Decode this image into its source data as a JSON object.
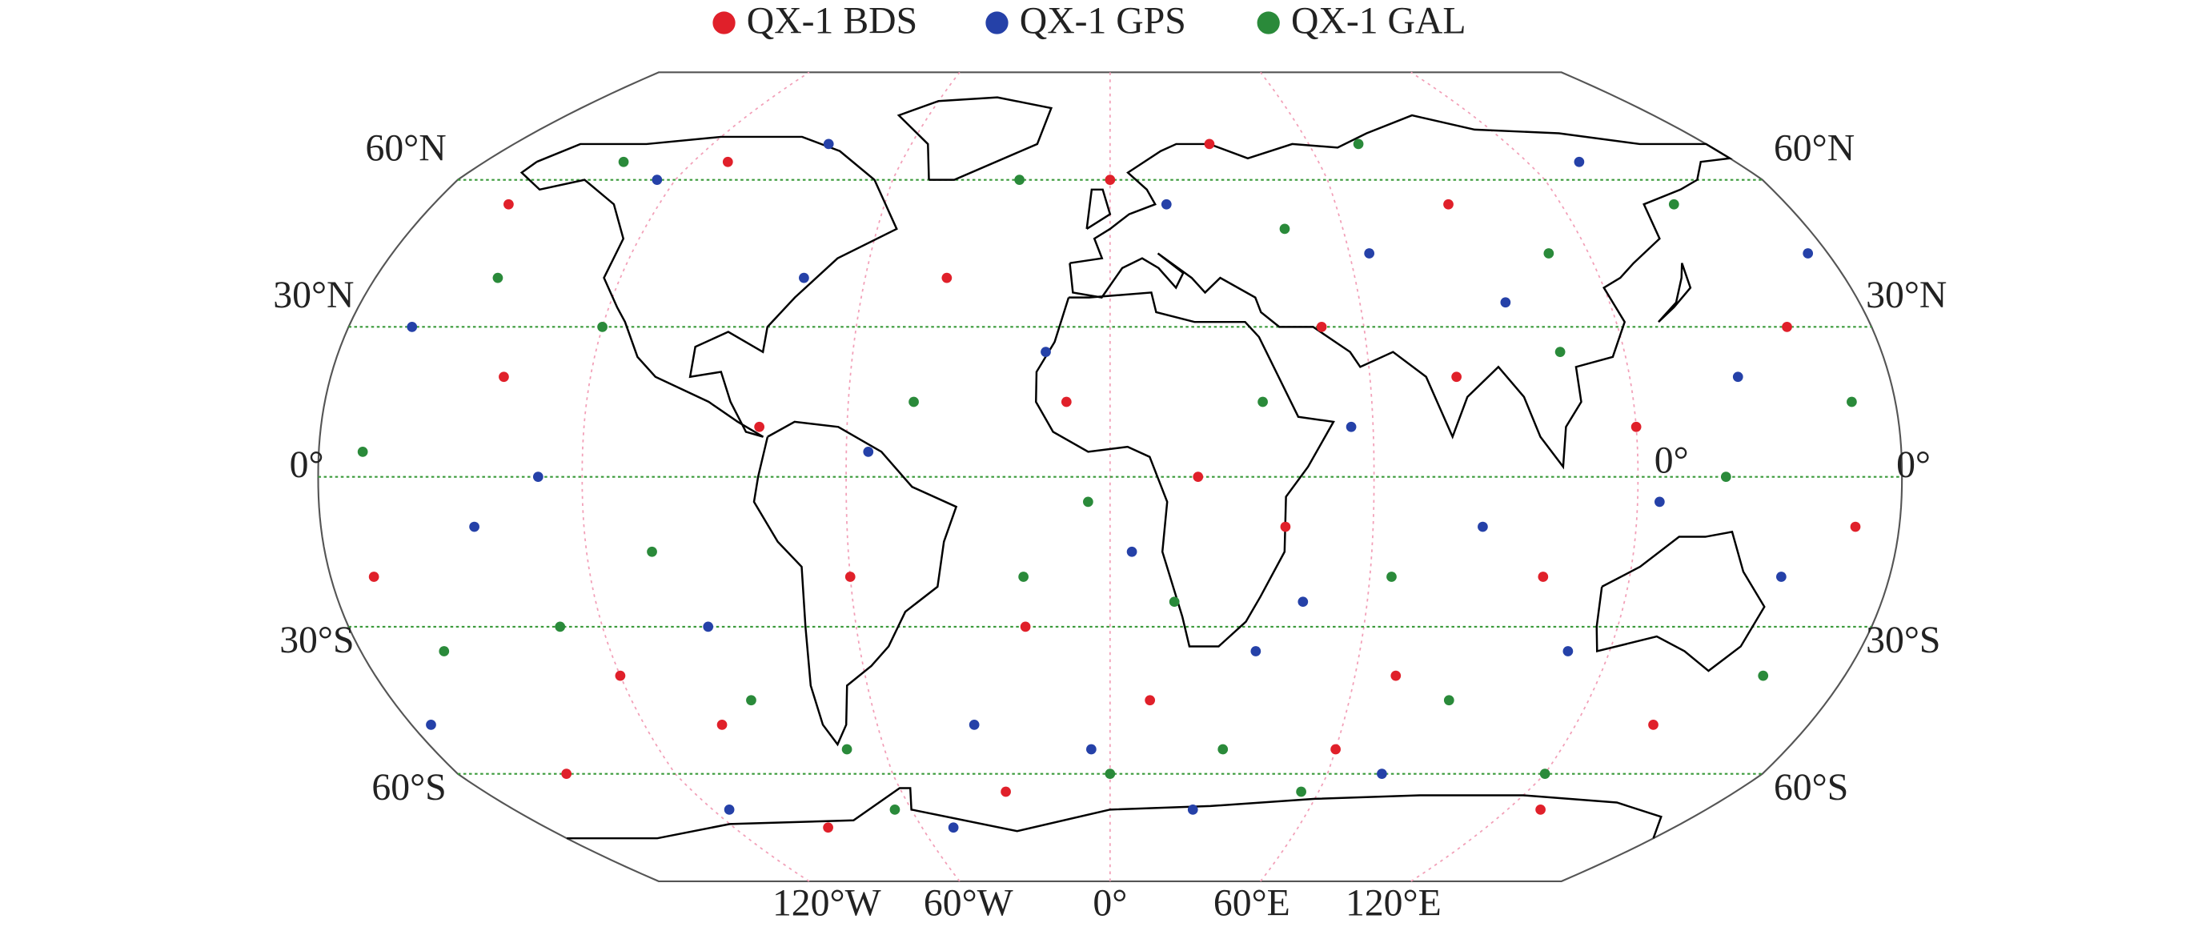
{
  "chart_data": {
    "type": "scatter",
    "projection": "robinson",
    "xlim": [
      -180,
      180
    ],
    "ylim": [
      -90,
      90
    ],
    "xticks": [
      {
        "value": -120,
        "label": "120°W"
      },
      {
        "value": -60,
        "label": "60°W"
      },
      {
        "value": 0,
        "label": "0°"
      },
      {
        "value": 60,
        "label": "60°E"
      },
      {
        "value": 120,
        "label": "120°E"
      }
    ],
    "yticks": [
      {
        "value": 60,
        "label": "60°N"
      },
      {
        "value": 30,
        "label": "30°N"
      },
      {
        "value": 0,
        "label": "0°"
      },
      {
        "value": -30,
        "label": "30°S"
      },
      {
        "value": -60,
        "label": "60°S"
      }
    ],
    "annotation": "0°",
    "grid": true,
    "legend": "top",
    "series": [
      {
        "name": "QX-1 BDS",
        "color": "#e0202a",
        "x": [
          -160,
          -140,
          -120,
          -100,
          -80,
          -60,
          -40,
          -20,
          0,
          10,
          20,
          40,
          50,
          70,
          90,
          100,
          120,
          140,
          160,
          170,
          -170,
          -150,
          -110,
          -30,
          30,
          60,
          130,
          -90,
          80,
          -10
        ],
        "y": [
          55,
          20,
          -40,
          -50,
          10,
          -20,
          40,
          -30,
          60,
          -45,
          0,
          -10,
          30,
          -40,
          55,
          -20,
          10,
          -50,
          30,
          -10,
          -20,
          -60,
          65,
          -65,
          70,
          -55,
          -70,
          -75,
          20,
          15
        ]
      },
      {
        "name": "QX-1 GPS",
        "color": "#2541a8",
        "x": [
          -165,
          -145,
          -125,
          -95,
          -75,
          -55,
          -35,
          -15,
          5,
          15,
          35,
          55,
          75,
          95,
          110,
          135,
          155,
          175,
          -175,
          -115,
          -85,
          -50,
          25,
          65,
          125,
          145,
          -5,
          45,
          -130,
          85
        ],
        "y": [
          30,
          -10,
          60,
          -30,
          40,
          5,
          -50,
          25,
          -15,
          55,
          -35,
          10,
          -60,
          35,
          -35,
          65,
          -20,
          45,
          -50,
          -70,
          70,
          -75,
          -70,
          45,
          -5,
          20,
          -55,
          -25,
          0,
          -10
        ]
      },
      {
        "name": "QX-1 GAL",
        "color": "#2a8a3a",
        "x": [
          -170,
          -150,
          -130,
          -105,
          -70,
          -45,
          -25,
          -5,
          15,
          35,
          45,
          65,
          85,
          105,
          120,
          140,
          160,
          -160,
          -120,
          -65,
          0,
          75,
          150,
          -90,
          -20,
          30,
          110,
          -140,
          170,
          55
        ],
        "y": [
          5,
          40,
          -30,
          -15,
          -55,
          15,
          60,
          -5,
          -25,
          15,
          50,
          -20,
          -45,
          25,
          -60,
          0,
          -40,
          -35,
          30,
          -70,
          -60,
          70,
          55,
          -45,
          -20,
          -55,
          45,
          65,
          15,
          -65
        ]
      }
    ]
  }
}
